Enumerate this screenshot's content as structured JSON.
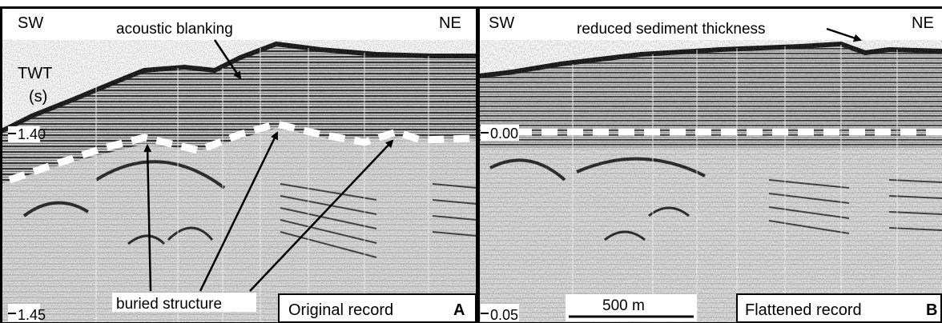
{
  "panel_a": {
    "sw_label": "SW",
    "ne_label": "NE",
    "axis_label_line1": "TWT",
    "axis_label_line2": "(s)",
    "tick_top": "1.40",
    "tick_bottom": "1.45",
    "annotation_blanking": "acoustic blanking",
    "annotation_buried": "buried structure",
    "caption": "Original record",
    "panel_letter": "A"
  },
  "panel_b": {
    "sw_label": "SW",
    "ne_label": "NE",
    "tick_top": "0.00",
    "tick_bottom": "0.05",
    "annotation_reduced": "reduced sediment thickness",
    "scale_bar_label": "500 m",
    "caption": "Flattened record",
    "panel_letter": "B"
  },
  "colors": {
    "horizon_dash": "#ffffff",
    "frame": "#000000",
    "sediment_dark": "#1a1a1a",
    "sediment_light": "#d9d9d9"
  }
}
